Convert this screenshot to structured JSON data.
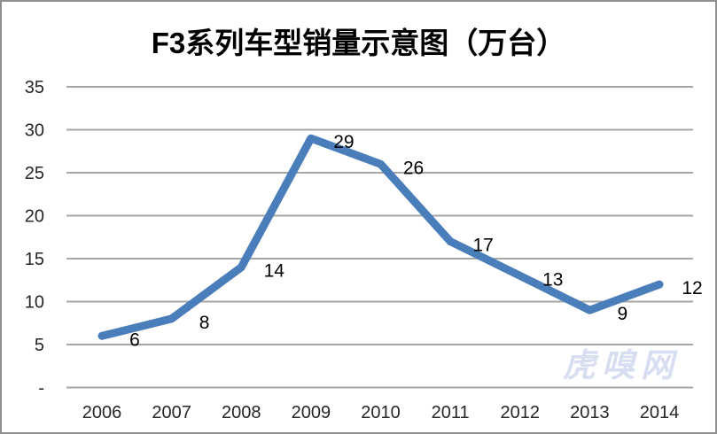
{
  "page": {
    "title": "F3系列车型销量示意图（万台）",
    "watermark": "虎嗅网"
  },
  "colors": {
    "line": "#4a7ebb",
    "grid": "#a6a6a6",
    "title_text": "#000000",
    "tick_text": "#262626",
    "data_label": "#000000",
    "watermark": "#d7def1",
    "frame_border": "#8f8f8f",
    "background": "#ffffff"
  },
  "chart_data": {
    "type": "line",
    "title": "F3系列车型销量示意图（万台）",
    "categories": [
      "2006",
      "2007",
      "2008",
      "2009",
      "2010",
      "2011",
      "2012",
      "2013",
      "2014"
    ],
    "values": [
      6,
      8,
      14,
      29,
      26,
      17,
      13,
      9,
      12
    ],
    "xlabel": "",
    "ylabel": "",
    "ylim": [
      0,
      35
    ],
    "ytick_interval": 5,
    "ytick_labels": [
      "-",
      "5",
      "10",
      "15",
      "20",
      "25",
      "30",
      "35"
    ],
    "grid": "horizontal",
    "legend": "none",
    "data_labels": true
  }
}
